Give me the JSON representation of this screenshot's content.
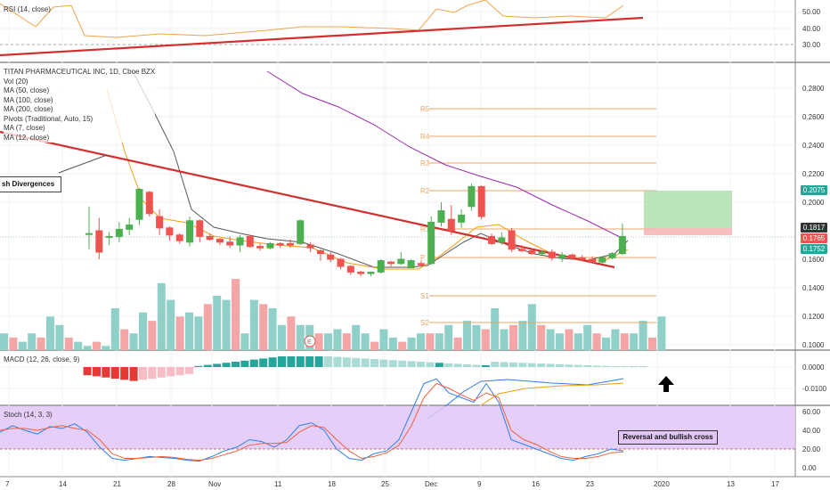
{
  "colors": {
    "up": "#26a69a",
    "up_body": "#4caf50",
    "down": "#ef5350",
    "rsi": "#f0a44b",
    "trend": "#d32f2f",
    "ma50": "#9c27b0",
    "ma7": "#555555",
    "ma12": "#f39c12",
    "pivot": "#e9a466",
    "stoch_bg": "#e1c6f7",
    "stoch_k": "#2f80ed",
    "stoch_d": "#f2613f",
    "macd_line": "#2f80ed",
    "signal_line": "#f39c12"
  },
  "rsi_panel": {
    "label": "RSI (14, close)",
    "ticks": [
      "50.00",
      "40.00",
      "30.00"
    ]
  },
  "main_panel": {
    "legend": [
      "TITAN PHARMACEUTICAL INC, 1D, Cboe BZX",
      "Vol (20)",
      "MA (50, close)",
      "MA (100, close)",
      "MA (200, close)",
      "Pivots (Traditional, Auto, 15)",
      "MA (7, close)",
      "MA (12, close)"
    ],
    "annotation_left": "sh Divergences",
    "pivot_labels": [
      "R5",
      "R4",
      "R3",
      "R2",
      "R1",
      "P",
      "S1",
      "S2"
    ],
    "ticks": [
      "0.2800",
      "0.2600",
      "0.2400",
      "0.2200",
      "0.2000",
      "0.1600",
      "0.1400",
      "0.1200",
      "0.1000"
    ],
    "price_tags": [
      {
        "text": "0.2075",
        "color": "#26a69a"
      },
      {
        "text": "0.1817",
        "color": "#333333"
      },
      {
        "text": "0.1765",
        "color": "#ef5350"
      },
      {
        "text": "0.1752",
        "color": "#26a69a"
      }
    ],
    "earnings_marker": "E"
  },
  "macd_panel": {
    "label": "MACD (12, 26, close, 9)",
    "ticks": [
      "0.0000",
      "-0.0100"
    ]
  },
  "stoch_panel": {
    "label": "Stoch (14, 3, 3)",
    "ticks": [
      "60.00",
      "40.00",
      "20.00",
      "0.00"
    ],
    "annotation": "Reversal and bullish cross"
  },
  "x_axis": {
    "labels": [
      "7",
      "14",
      "21",
      "28",
      "Nov",
      "11",
      "18",
      "25",
      "Dec",
      "9",
      "16",
      "23",
      "2020",
      "13",
      "17"
    ]
  },
  "chart_data": {
    "type": "candlestick",
    "title": "TITAN PHARMACEUTICAL INC, 1D, Cboe BZX",
    "candles": [
      {
        "o": 0.178,
        "h": 0.197,
        "l": 0.167,
        "c": 0.178
      },
      {
        "o": 0.18,
        "h": 0.189,
        "l": 0.16,
        "c": 0.165
      },
      {
        "o": 0.176,
        "h": 0.179,
        "l": 0.17,
        "c": 0.176
      },
      {
        "o": 0.176,
        "h": 0.186,
        "l": 0.172,
        "c": 0.181
      },
      {
        "o": 0.181,
        "h": 0.189,
        "l": 0.177,
        "c": 0.184
      },
      {
        "o": 0.188,
        "h": 0.21,
        "l": 0.184,
        "c": 0.209
      },
      {
        "o": 0.207,
        "h": 0.208,
        "l": 0.19,
        "c": 0.192
      },
      {
        "o": 0.19,
        "h": 0.195,
        "l": 0.177,
        "c": 0.182
      },
      {
        "o": 0.182,
        "h": 0.183,
        "l": 0.173,
        "c": 0.177
      },
      {
        "o": 0.177,
        "h": 0.178,
        "l": 0.171,
        "c": 0.173
      },
      {
        "o": 0.172,
        "h": 0.19,
        "l": 0.169,
        "c": 0.187
      },
      {
        "o": 0.187,
        "h": 0.188,
        "l": 0.172,
        "c": 0.176
      },
      {
        "o": 0.176,
        "h": 0.178,
        "l": 0.173,
        "c": 0.174
      },
      {
        "o": 0.174,
        "h": 0.175,
        "l": 0.17,
        "c": 0.172
      },
      {
        "o": 0.172,
        "h": 0.176,
        "l": 0.168,
        "c": 0.17
      },
      {
        "o": 0.17,
        "h": 0.177,
        "l": 0.165,
        "c": 0.175
      },
      {
        "o": 0.176,
        "h": 0.177,
        "l": 0.168,
        "c": 0.169
      },
      {
        "o": 0.169,
        "h": 0.171,
        "l": 0.166,
        "c": 0.168
      },
      {
        "o": 0.168,
        "h": 0.172,
        "l": 0.167,
        "c": 0.171
      },
      {
        "o": 0.171,
        "h": 0.172,
        "l": 0.168,
        "c": 0.17
      },
      {
        "o": 0.171,
        "h": 0.174,
        "l": 0.168,
        "c": 0.17
      },
      {
        "o": 0.171,
        "h": 0.188,
        "l": 0.17,
        "c": 0.187
      },
      {
        "o": 0.17,
        "h": 0.172,
        "l": 0.165,
        "c": 0.168
      },
      {
        "o": 0.166,
        "h": 0.167,
        "l": 0.159,
        "c": 0.164
      },
      {
        "o": 0.163,
        "h": 0.165,
        "l": 0.158,
        "c": 0.16
      },
      {
        "o": 0.16,
        "h": 0.161,
        "l": 0.153,
        "c": 0.155
      },
      {
        "o": 0.155,
        "h": 0.156,
        "l": 0.149,
        "c": 0.151
      },
      {
        "o": 0.151,
        "h": 0.152,
        "l": 0.148,
        "c": 0.15
      },
      {
        "o": 0.15,
        "h": 0.151,
        "l": 0.148,
        "c": 0.151
      },
      {
        "o": 0.151,
        "h": 0.16,
        "l": 0.15,
        "c": 0.159
      },
      {
        "o": 0.158,
        "h": 0.159,
        "l": 0.155,
        "c": 0.157
      },
      {
        "o": 0.157,
        "h": 0.165,
        "l": 0.156,
        "c": 0.16
      },
      {
        "o": 0.154,
        "h": 0.16,
        "l": 0.154,
        "c": 0.159
      },
      {
        "o": 0.157,
        "h": 0.159,
        "l": 0.155,
        "c": 0.156
      },
      {
        "o": 0.157,
        "h": 0.19,
        "l": 0.156,
        "c": 0.186
      },
      {
        "o": 0.186,
        "h": 0.2,
        "l": 0.183,
        "c": 0.194
      },
      {
        "o": 0.188,
        "h": 0.198,
        "l": 0.177,
        "c": 0.18
      },
      {
        "o": 0.186,
        "h": 0.195,
        "l": 0.182,
        "c": 0.191
      },
      {
        "o": 0.197,
        "h": 0.213,
        "l": 0.194,
        "c": 0.211
      },
      {
        "o": 0.211,
        "h": 0.212,
        "l": 0.188,
        "c": 0.19
      },
      {
        "o": 0.176,
        "h": 0.178,
        "l": 0.17,
        "c": 0.171
      },
      {
        "o": 0.172,
        "h": 0.179,
        "l": 0.17,
        "c": 0.175
      },
      {
        "o": 0.18,
        "h": 0.182,
        "l": 0.165,
        "c": 0.167
      },
      {
        "o": 0.167,
        "h": 0.17,
        "l": 0.165,
        "c": 0.166
      },
      {
        "o": 0.166,
        "h": 0.168,
        "l": 0.163,
        "c": 0.164
      },
      {
        "o": 0.164,
        "h": 0.166,
        "l": 0.163,
        "c": 0.165
      },
      {
        "o": 0.165,
        "h": 0.167,
        "l": 0.159,
        "c": 0.161
      },
      {
        "o": 0.161,
        "h": 0.165,
        "l": 0.158,
        "c": 0.163
      },
      {
        "o": 0.163,
        "h": 0.164,
        "l": 0.16,
        "c": 0.161
      },
      {
        "o": 0.161,
        "h": 0.163,
        "l": 0.159,
        "c": 0.16
      },
      {
        "o": 0.16,
        "h": 0.162,
        "l": 0.157,
        "c": 0.158
      },
      {
        "o": 0.158,
        "h": 0.162,
        "l": 0.157,
        "c": 0.161
      },
      {
        "o": 0.161,
        "h": 0.165,
        "l": 0.16,
        "c": 0.164
      },
      {
        "o": 0.164,
        "h": 0.185,
        "l": 0.163,
        "c": 0.176
      }
    ],
    "volume": [
      4,
      3,
      2,
      4,
      3,
      8,
      6,
      3,
      2,
      1,
      2,
      1,
      10,
      5,
      4,
      9,
      7,
      16,
      12,
      8,
      9,
      8,
      11,
      13,
      12,
      17,
      4,
      12,
      11,
      10,
      6,
      8,
      6,
      6,
      4,
      4,
      5,
      4,
      6,
      4,
      2,
      5,
      3,
      2,
      3,
      4,
      4,
      4,
      6,
      3,
      7,
      6,
      5,
      10,
      5,
      6,
      7,
      11,
      6,
      5,
      4,
      5,
      4,
      6,
      4,
      3,
      5,
      4,
      4,
      7,
      3,
      8
    ],
    "stoch_k": [
      38,
      45,
      40,
      36,
      44,
      42,
      47,
      38,
      22,
      10,
      8,
      10,
      12,
      11,
      10,
      8,
      7,
      12,
      18,
      22,
      30,
      28,
      22,
      30,
      45,
      48,
      40,
      20,
      10,
      8,
      15,
      18,
      30,
      60,
      90,
      95,
      80,
      75,
      70,
      90,
      70,
      30,
      25,
      20,
      15,
      10,
      8,
      12,
      15,
      20,
      18
    ],
    "stoch_d": [
      40,
      42,
      42,
      40,
      43,
      45,
      42,
      40,
      30,
      15,
      10,
      10,
      11,
      12,
      11,
      9,
      8,
      10,
      14,
      18,
      24,
      26,
      26,
      27,
      38,
      45,
      43,
      30,
      18,
      10,
      12,
      16,
      24,
      45,
      75,
      90,
      85,
      78,
      72,
      80,
      75,
      40,
      30,
      25,
      18,
      12,
      10,
      10,
      12,
      16,
      17
    ]
  }
}
